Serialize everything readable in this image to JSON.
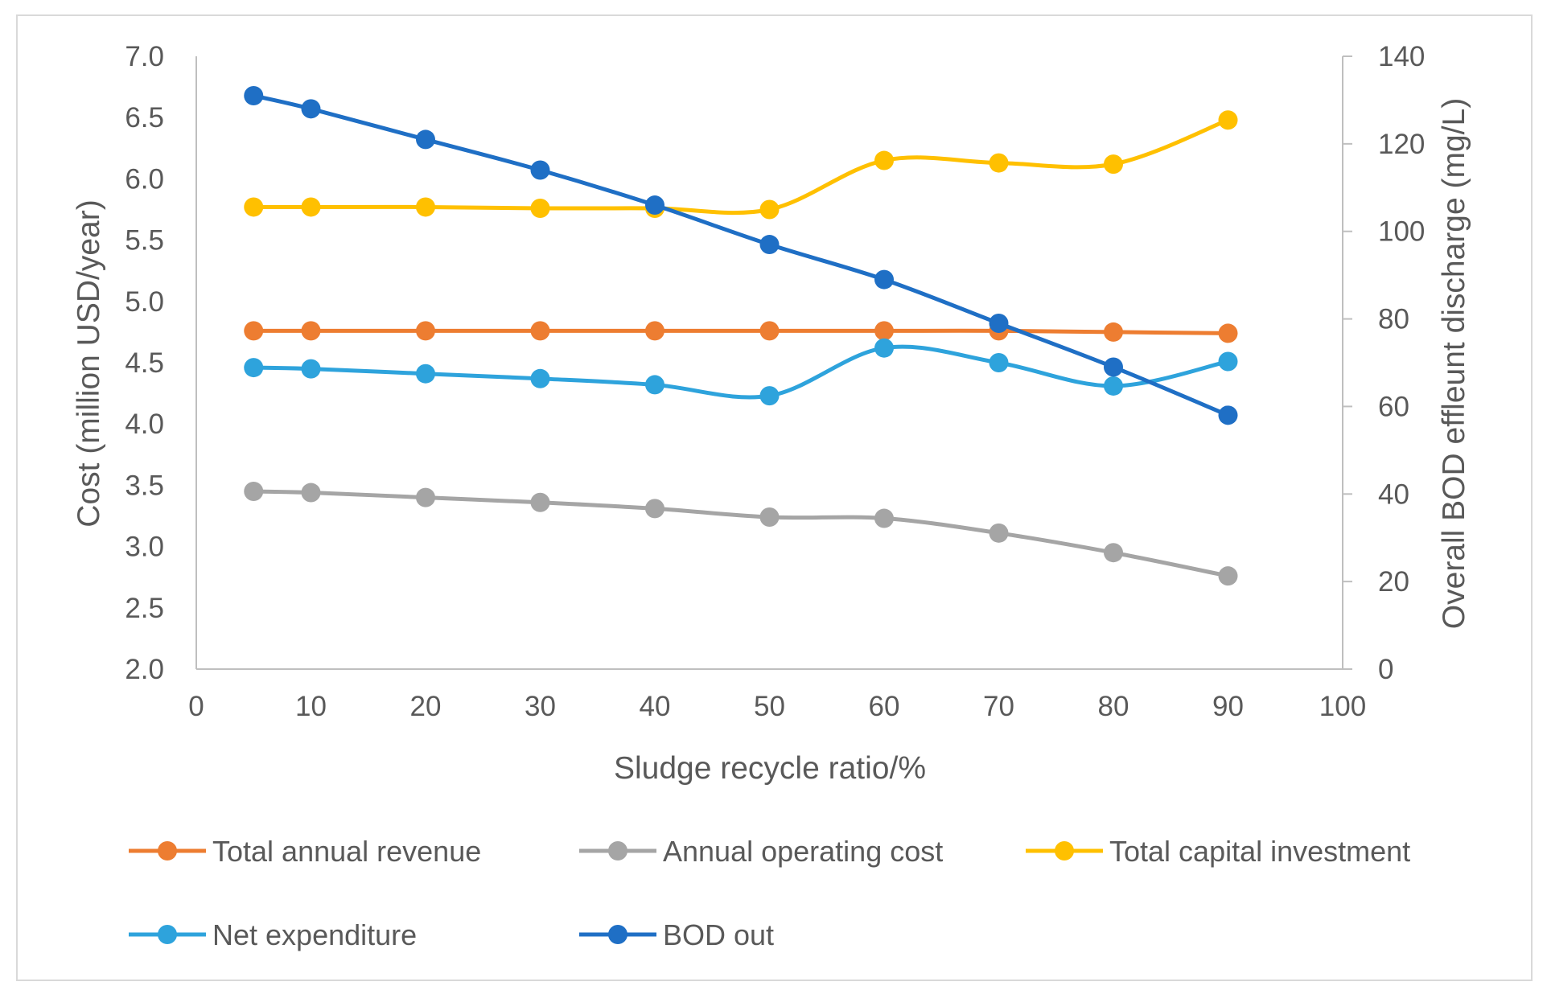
{
  "chart_data": {
    "type": "line",
    "title": "",
    "xlabel": "Sludge recycle ratio/%",
    "ylabel": "Cost (million USD/year)",
    "y2label": "Overall BOD effleunt discharge (mg/L)",
    "xlim": [
      0,
      100
    ],
    "ylim": [
      2.0,
      7.0
    ],
    "y2lim": [
      0,
      140
    ],
    "x_ticks": [
      "0",
      "10",
      "20",
      "30",
      "40",
      "50",
      "60",
      "70",
      "80",
      "90",
      "100"
    ],
    "y_ticks": [
      "2.0",
      "2.5",
      "3.0",
      "3.5",
      "4.0",
      "4.5",
      "5.0",
      "5.5",
      "6.0",
      "6.5",
      "7.0"
    ],
    "y2_ticks": [
      "0",
      "20",
      "40",
      "60",
      "80",
      "100",
      "120",
      "140"
    ],
    "grid": false,
    "legend_position": "bottom",
    "x": [
      5,
      10,
      20,
      30,
      40,
      50,
      60,
      70,
      80,
      90
    ],
    "series": [
      {
        "name": "Total annual revenue",
        "axis": "left",
        "color": "#ed7d31",
        "values": [
          4.76,
          4.76,
          4.76,
          4.76,
          4.76,
          4.76,
          4.76,
          4.76,
          4.75,
          4.74
        ]
      },
      {
        "name": "Annual operating cost",
        "axis": "left",
        "color": "#a5a5a5",
        "values": [
          3.45,
          3.44,
          3.4,
          3.36,
          3.31,
          3.24,
          3.23,
          3.11,
          2.95,
          2.76
        ]
      },
      {
        "name": "Total capital investment",
        "axis": "left",
        "color": "#ffc000",
        "values": [
          5.77,
          5.77,
          5.77,
          5.76,
          5.76,
          5.75,
          6.15,
          6.13,
          6.12,
          6.48
        ]
      },
      {
        "name": "Net expenditure",
        "axis": "left",
        "color": "#2ea3dc",
        "values": [
          4.46,
          4.45,
          4.41,
          4.37,
          4.32,
          4.23,
          4.62,
          4.5,
          4.31,
          4.51
        ]
      },
      {
        "name": "BOD out",
        "axis": "right",
        "color": "#1f6fc5",
        "values": [
          131,
          128,
          121,
          114,
          106,
          97,
          89,
          79,
          69,
          58
        ]
      }
    ]
  }
}
